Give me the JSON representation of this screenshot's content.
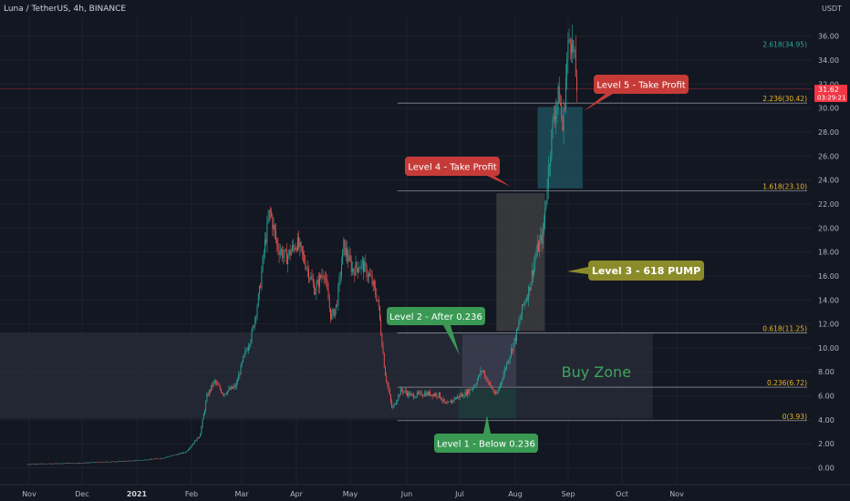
{
  "header": {
    "title": "Luna / TetherUS, 4h, BINANCE",
    "currency": "USDT"
  },
  "price_tag": {
    "price": "31.62",
    "countdown": "03:29:21",
    "color": "#f23645"
  },
  "colors": {
    "background": "#131722",
    "up": "#26a69a",
    "down": "#ef5350",
    "grid": "#1e222d",
    "green_label": "#3a9a54",
    "red_label": "#c63b38",
    "olive_label": "#8b8b2a"
  },
  "chart_data": {
    "type": "candlestick",
    "title": "",
    "ylim": [
      -1,
      37
    ],
    "yticks": [
      "0.00",
      "2.00",
      "4.00",
      "6.00",
      "8.00",
      "10.00",
      "12.00",
      "14.00",
      "16.00",
      "18.00",
      "20.00",
      "22.00",
      "24.00",
      "26.00",
      "28.00",
      "30.00",
      "32.00",
      "34.00",
      "36.00"
    ],
    "xticks": [
      {
        "label": "Nov",
        "bold": false
      },
      {
        "label": "Dec",
        "bold": false
      },
      {
        "label": "2021",
        "bold": true
      },
      {
        "label": "Feb",
        "bold": false
      },
      {
        "label": "Mar",
        "bold": false
      },
      {
        "label": "Apr",
        "bold": false
      },
      {
        "label": "May",
        "bold": false
      },
      {
        "label": "Jun",
        "bold": false
      },
      {
        "label": "Jul",
        "bold": false
      },
      {
        "label": "Aug",
        "bold": false
      },
      {
        "label": "Sep",
        "bold": false
      },
      {
        "label": "Oct",
        "bold": false
      },
      {
        "label": "Nov",
        "bold": false
      }
    ],
    "price_path": [
      [
        "2020-11-01",
        0.3
      ],
      [
        "2020-12-01",
        0.4
      ],
      [
        "2021-01-01",
        0.6
      ],
      [
        "2021-01-15",
        0.8
      ],
      [
        "2021-01-28",
        1.3
      ],
      [
        "2021-02-05",
        2.7
      ],
      [
        "2021-02-09",
        6.0
      ],
      [
        "2021-02-13",
        7.2
      ],
      [
        "2021-02-18",
        6.2
      ],
      [
        "2021-02-25",
        6.8
      ],
      [
        "2021-03-01",
        9.0
      ],
      [
        "2021-03-06",
        11.2
      ],
      [
        "2021-03-10",
        14.5
      ],
      [
        "2021-03-13",
        18.5
      ],
      [
        "2021-03-16",
        21.5
      ],
      [
        "2021-03-20",
        18.5
      ],
      [
        "2021-03-25",
        17.5
      ],
      [
        "2021-03-31",
        18.8
      ],
      [
        "2021-04-05",
        17.0
      ],
      [
        "2021-04-10",
        14.8
      ],
      [
        "2021-04-15",
        16.5
      ],
      [
        "2021-04-19",
        12.5
      ],
      [
        "2021-04-22",
        13.5
      ],
      [
        "2021-04-26",
        18.5
      ],
      [
        "2021-05-01",
        16.5
      ],
      [
        "2021-05-06",
        17.0
      ],
      [
        "2021-05-11",
        15.8
      ],
      [
        "2021-05-15",
        14.0
      ],
      [
        "2021-05-19",
        8.0
      ],
      [
        "2021-05-23",
        4.9
      ],
      [
        "2021-05-28",
        6.5
      ],
      [
        "2021-06-03",
        6.0
      ],
      [
        "2021-06-10",
        6.2
      ],
      [
        "2021-06-18",
        6.1
      ],
      [
        "2021-06-22",
        5.2
      ],
      [
        "2021-06-27",
        5.8
      ],
      [
        "2021-07-03",
        6.2
      ],
      [
        "2021-07-08",
        6.9
      ],
      [
        "2021-07-12",
        8.2
      ],
      [
        "2021-07-16",
        7.0
      ],
      [
        "2021-07-20",
        6.0
      ],
      [
        "2021-07-26",
        8.8
      ],
      [
        "2021-07-31",
        11.0
      ],
      [
        "2021-08-04",
        13.6
      ],
      [
        "2021-08-07",
        14.8
      ],
      [
        "2021-08-11",
        17.8
      ],
      [
        "2021-08-15",
        19.5
      ],
      [
        "2021-08-18",
        25.0
      ],
      [
        "2021-08-21",
        29.5
      ],
      [
        "2021-08-24",
        31.2
      ],
      [
        "2021-08-26",
        28.0
      ],
      [
        "2021-08-28",
        33.5
      ],
      [
        "2021-08-30",
        36.5
      ],
      [
        "2021-09-01",
        34.5
      ],
      [
        "2021-09-03",
        31.6
      ]
    ],
    "fib_levels": [
      {
        "label": "0(3.93)",
        "value": 3.93,
        "color": "#e8b52a"
      },
      {
        "label": "0.236(6.72)",
        "value": 6.72,
        "color": "#e8b52a"
      },
      {
        "label": "0.618(11.25)",
        "value": 11.25,
        "color": "#e8b52a"
      },
      {
        "label": "1.618(23.10)",
        "value": 23.1,
        "color": "#e8b52a"
      },
      {
        "label": "2.236(30.42)",
        "value": 30.42,
        "color": "#e8b52a"
      },
      {
        "label": "2.618(34.95)",
        "value": 34.95,
        "color": "#2fa89a"
      }
    ],
    "zones": [
      {
        "name": "buy-zone",
        "label": "Buy Zone",
        "from": "2020-10-01",
        "to": "2021-10-15",
        "ylow": 4.1,
        "yhigh": 11.3,
        "fill": "#2a2e39"
      },
      {
        "name": "level2-box",
        "label": "",
        "from": "2021-07-01",
        "to": "2021-07-31",
        "ylow": 6.8,
        "yhigh": 11.1,
        "fill": "#3a3d4c"
      },
      {
        "name": "level1-box",
        "label": "",
        "from": "2021-06-29",
        "to": "2021-07-31",
        "ylow": 4.1,
        "yhigh": 6.6,
        "fill": "#1e3b3a"
      },
      {
        "name": "level3-box",
        "label": "",
        "from": "2021-07-20",
        "to": "2021-08-16",
        "ylow": 11.4,
        "yhigh": 22.9,
        "fill": "#3a3b3e"
      },
      {
        "name": "level5-box",
        "label": "",
        "from": "2021-08-12",
        "to": "2021-09-06",
        "ylow": 23.3,
        "yhigh": 30.1,
        "fill": "#1f4a57"
      }
    ],
    "annotations": [
      {
        "text": "Level 1 - Below 0.236",
        "color": "#3a9a54"
      },
      {
        "text": "Level 2 - After 0.236",
        "color": "#3a9a54"
      },
      {
        "text": "Level 3 - 618 PUMP",
        "color": "#8b8b2a"
      },
      {
        "text": "Level 4 - Take Profit",
        "color": "#c63b38"
      },
      {
        "text": "Level 5 - Take Profit",
        "color": "#c63b38"
      }
    ]
  }
}
